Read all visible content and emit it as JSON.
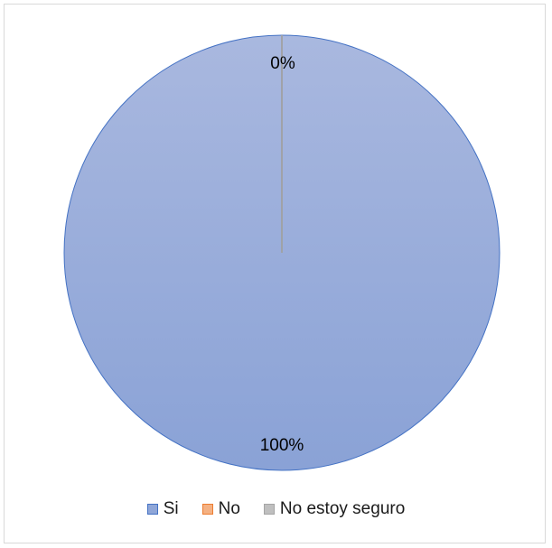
{
  "chart_data": {
    "type": "pie",
    "categories": [
      "Si",
      "No",
      "No estoy seguro"
    ],
    "values": [
      100,
      0,
      0
    ],
    "data_labels": [
      "100%",
      "0%",
      "0%"
    ],
    "legend_position": "bottom",
    "colors": {
      "Si": "#8fa6d8",
      "No": "#f4b183",
      "No estoy seguro": "#bfbfbf"
    },
    "border_color": "#4472c4"
  }
}
